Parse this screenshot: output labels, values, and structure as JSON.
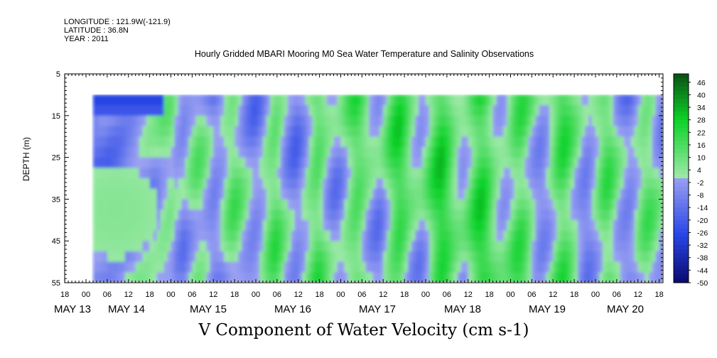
{
  "header": {
    "longitude": "LONGITUDE : 121.9W(-121.9)",
    "latitude": "LATITUDE : 36.8N",
    "year": "YEAR : 2011"
  },
  "chart_data": {
    "type": "heatmap",
    "title": "Hourly Gridded MBARI Mooring M0 Sea Water Temperature and Salinity Observations",
    "xlabel": "V Component of Water Velocity (cm s-1)",
    "ylabel": "DEPTH (m)",
    "ylim": [
      55,
      5
    ],
    "y_ticks": [
      5,
      15,
      25,
      35,
      45,
      55
    ],
    "x_hour_ticks": [
      "18",
      "00",
      "06",
      "12",
      "18",
      "00",
      "06",
      "12",
      "18",
      "00",
      "06",
      "12",
      "18",
      "00",
      "06",
      "12",
      "18",
      "00",
      "06",
      "12",
      "18",
      "00",
      "06",
      "12",
      "18",
      "00",
      "06",
      "12",
      "18"
    ],
    "x_day_labels": [
      "MAY 13",
      "MAY 14",
      "MAY 15",
      "MAY 16",
      "MAY 17",
      "MAY 18",
      "MAY 19",
      "MAY 20"
    ],
    "data_depth_range": [
      10,
      55
    ],
    "data_start": "MAY 14 02",
    "colorbar_labels": [
      "46",
      "40",
      "34",
      "28",
      "22",
      "16",
      "10",
      "4",
      "-2",
      "-8",
      "-14",
      "-20",
      "-26",
      "-32",
      "-38",
      "-44",
      "-50"
    ],
    "colorbar_range": [
      -50,
      50
    ],
    "field_hourly_columns": [
      -12,
      -10,
      -9,
      -8,
      -8,
      -7,
      -7,
      -6,
      -6,
      -5,
      -5,
      -5,
      -4,
      -4,
      -4,
      -3,
      -3,
      -2,
      0,
      3,
      4,
      5,
      3,
      -2,
      -4,
      -6,
      -3,
      1,
      4,
      6,
      5,
      2,
      -2,
      -6,
      -8,
      -6,
      -3,
      2,
      6,
      9,
      8,
      5,
      1,
      -3,
      -6,
      -8,
      -7,
      -4,
      1,
      6,
      10,
      12,
      9,
      4,
      -1,
      -5,
      -8,
      -9,
      -6,
      -2,
      3,
      8,
      12,
      14,
      11,
      6,
      1,
      -3,
      -5,
      -4,
      -1,
      4,
      9,
      13,
      15,
      13,
      9,
      4,
      0,
      -3,
      -5,
      -3,
      2,
      8,
      14,
      18,
      20,
      17,
      12,
      6,
      2,
      -1,
      -2,
      1,
      6,
      12,
      18,
      22,
      24,
      21,
      16,
      10,
      5,
      2,
      1,
      4,
      9,
      15,
      20,
      23,
      22,
      18,
      12,
      7,
      3,
      1,
      2,
      5,
      10,
      14,
      16,
      15,
      11,
      6,
      1,
      -3,
      -5,
      -4,
      -1,
      4,
      10,
      15,
      18,
      17,
      13,
      8,
      3,
      -2,
      -6,
      -8,
      -6,
      -2,
      3,
      8,
      12,
      13,
      10,
      5,
      0,
      -4,
      -7,
      -8,
      -6,
      -2,
      3,
      7,
      9,
      8,
      5,
      1,
      -2,
      -4,
      -3,
      0,
      4,
      7
    ]
  },
  "colors": {
    "negative_end": "#0a0a6e",
    "mid_negative": "#9da3f2",
    "mid_positive": "#9be8a6",
    "positive_end": "#0a4f14"
  }
}
